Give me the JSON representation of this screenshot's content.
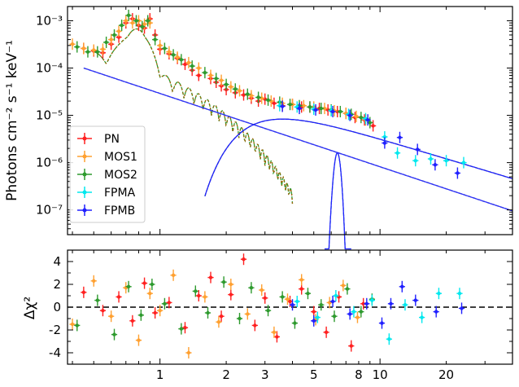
{
  "chart_data": [
    {
      "panel": "spectrum",
      "type": "scatter",
      "xscale": "log",
      "yscale": "log",
      "xlim": [
        0.38,
        40
      ],
      "ylim": [
        3e-08,
        0.002
      ],
      "ylabel": "Photons cm⁻² s⁻¹ keV⁻¹",
      "y_tick_labels": [
        {
          "value": 0.001,
          "label": "10⁻³"
        },
        {
          "value": 0.0001,
          "label": "10⁻⁴"
        },
        {
          "value": 1e-05,
          "label": "10⁻⁵"
        },
        {
          "value": 1e-06,
          "label": "10⁻⁶"
        },
        {
          "value": 1e-07,
          "label": "10⁻⁷"
        }
      ],
      "legend_position": "lower-left",
      "legend": [
        "PN",
        "MOS1",
        "MOS2",
        "FPMA",
        "FPMB"
      ],
      "series": [
        {
          "name": "PN",
          "color": "#ff2020",
          "x": [
            0.45,
            0.5,
            0.55,
            0.6,
            0.65,
            0.7,
            0.75,
            0.8,
            0.85,
            0.9,
            0.95,
            1.0,
            1.1,
            1.2,
            1.3,
            1.4,
            1.5,
            1.7,
            1.8,
            1.9,
            2.0,
            2.2,
            2.4,
            2.6,
            2.8,
            3.0,
            3.3,
            3.6,
            4.0,
            4.4,
            4.8,
            5.3,
            5.8,
            6.4,
            7.0,
            7.7,
            8.5,
            9.3
          ],
          "y": [
            0.00026,
            0.00023,
            0.00021,
            0.00032,
            0.00045,
            0.0009,
            0.0011,
            0.0008,
            0.0007,
            0.0011,
            0.0005,
            0.00025,
            0.0002,
            0.00016,
            0.00012,
            9e-05,
            7e-05,
            6e-05,
            5e-05,
            4.2e-05,
            3.5e-05,
            3e-05,
            2.7e-05,
            2.3e-05,
            2e-05,
            2.2e-05,
            1.8e-05,
            1.6e-05,
            1.7e-05,
            1.5e-05,
            1.5e-05,
            1.4e-05,
            1.3e-05,
            1.2e-05,
            1.1e-05,
            9e-06,
            8e-06,
            6e-06
          ]
        },
        {
          "name": "MOS1",
          "color": "#ffa030",
          "x": [
            0.4,
            0.45,
            0.5,
            0.55,
            0.6,
            0.65,
            0.7,
            0.75,
            0.8,
            0.85,
            0.9,
            1.0,
            1.1,
            1.2,
            1.35,
            1.5,
            1.7,
            1.9,
            2.1,
            2.3,
            2.6,
            2.9,
            3.2,
            3.6,
            4.0,
            4.5,
            5.0,
            5.6,
            6.2,
            7.0,
            7.8,
            8.6
          ],
          "y": [
            0.00032,
            0.00026,
            0.00024,
            0.00025,
            0.0004,
            0.0006,
            0.001,
            0.0009,
            0.001,
            0.00085,
            0.0009,
            0.0003,
            0.00022,
            0.00017,
            0.00013,
            0.0001,
            7e-05,
            5.5e-05,
            4e-05,
            3.3e-05,
            2.6e-05,
            2.3e-05,
            2e-05,
            1.8e-05,
            1.7e-05,
            1.6e-05,
            1.5e-05,
            1.4e-05,
            1.25e-05,
            1.1e-05,
            9.5e-06,
            8e-06
          ]
        },
        {
          "name": "MOS2",
          "color": "#2e9a2e",
          "x": [
            0.42,
            0.47,
            0.52,
            0.57,
            0.62,
            0.67,
            0.72,
            0.78,
            0.83,
            0.88,
            0.95,
            1.05,
            1.15,
            1.25,
            1.4,
            1.6,
            1.8,
            2.0,
            2.2,
            2.5,
            2.8,
            3.1,
            3.5,
            3.9,
            4.3,
            4.8,
            5.4,
            6.0,
            6.6,
            7.4,
            8.2,
            9.0
          ],
          "y": [
            0.00028,
            0.00022,
            0.00022,
            0.00035,
            0.0005,
            0.0008,
            0.0013,
            0.001,
            0.00075,
            0.001,
            0.0004,
            0.00026,
            0.00019,
            0.00015,
            0.00011,
            8e-05,
            6e-05,
            4.5e-05,
            3.6e-05,
            2.8e-05,
            2.4e-05,
            2.1e-05,
            1.9e-05,
            1.7e-05,
            1.6e-05,
            1.5e-05,
            1.4e-05,
            1.3e-05,
            1.2e-05,
            1.05e-05,
            9e-06,
            7e-06
          ]
        },
        {
          "name": "FPMA",
          "color": "#00e8ee",
          "x": [
            3.5,
            4.2,
            5.0,
            6.0,
            7.2,
            8.6,
            10.5,
            12.0,
            14.5,
            17.0,
            20.0,
            24.0
          ],
          "y": [
            1.6e-05,
            1.5e-05,
            1.35e-05,
            1.25e-05,
            1.05e-05,
            8.5e-06,
            3.5e-06,
            1.6e-06,
            1.1e-06,
            1.2e-06,
            1.1e-06,
            1e-06
          ]
        },
        {
          "name": "FPMB",
          "color": "#2020ff",
          "x": [
            3.6,
            4.3,
            5.1,
            6.1,
            7.3,
            8.8,
            10.5,
            12.3,
            14.8,
            17.8,
            22.5
          ],
          "y": [
            1.55e-05,
            1.4e-05,
            1.3e-05,
            1.2e-05,
            1e-05,
            8e-06,
            2.6e-06,
            3.4e-06,
            1.9e-06,
            9e-07,
            6e-07
          ]
        }
      ]
    },
    {
      "panel": "residuals",
      "type": "scatter",
      "xscale": "log",
      "xlim": [
        0.38,
        40
      ],
      "ylim": [
        -5,
        5
      ],
      "ylabel": "Δχ²",
      "y_ticks": [
        -4,
        -2,
        0,
        2,
        4
      ],
      "x_ticks": [
        1,
        2,
        3,
        5,
        8,
        10,
        20
      ],
      "zero_line": "dashed",
      "series": [
        {
          "name": "PN",
          "color": "#ff2020",
          "x": [
            0.45,
            0.55,
            0.65,
            0.75,
            0.85,
            0.95,
            1.1,
            1.3,
            1.5,
            1.7,
            1.9,
            2.1,
            2.4,
            2.7,
            3.0,
            3.4,
            3.9,
            4.4,
            5.0,
            5.7,
            6.5,
            7.4,
            8.4
          ],
          "y": [
            1.3,
            -0.3,
            0.9,
            -1.2,
            2.1,
            -0.5,
            0.4,
            -1.8,
            1.0,
            2.6,
            -0.8,
            1.1,
            4.2,
            -1.6,
            0.8,
            -2.6,
            0.5,
            1.6,
            -0.4,
            -2.2,
            0.9,
            -3.4,
            0.3
          ]
        },
        {
          "name": "MOS1",
          "color": "#ffa030",
          "x": [
            0.4,
            0.5,
            0.6,
            0.7,
            0.8,
            0.9,
            1.0,
            1.15,
            1.35,
            1.6,
            1.85,
            2.1,
            2.5,
            2.9,
            3.3,
            3.8,
            4.4,
            5.1,
            5.9,
            6.8,
            7.9
          ],
          "y": [
            -1.5,
            2.3,
            -0.8,
            1.7,
            -2.9,
            1.2,
            -0.3,
            2.8,
            -4.0,
            0.9,
            -1.3,
            2.0,
            -0.6,
            1.5,
            -2.2,
            0.7,
            2.4,
            -1.1,
            0.4,
            1.9,
            -0.9
          ]
        },
        {
          "name": "MOS2",
          "color": "#2e9a2e",
          "x": [
            0.42,
            0.52,
            0.62,
            0.72,
            0.82,
            0.92,
            1.05,
            1.25,
            1.45,
            1.65,
            1.95,
            2.3,
            2.6,
            3.1,
            3.6,
            4.1,
            4.7,
            5.4,
            6.2,
            7.1,
            8.2,
            9.2
          ],
          "y": [
            -1.6,
            0.6,
            -2.4,
            1.8,
            -0.7,
            2.0,
            0.3,
            -1.9,
            1.4,
            -0.5,
            2.2,
            -1.0,
            1.7,
            -0.3,
            0.9,
            -1.4,
            1.2,
            0.2,
            -0.8,
            1.6,
            -0.4,
            0.7
          ]
        },
        {
          "name": "FPMA",
          "color": "#00e8ee",
          "x": [
            4.2,
            5.2,
            6.3,
            7.6,
            9.2,
            11.0,
            13.0,
            15.5,
            18.5,
            23.0
          ],
          "y": [
            0.5,
            -0.9,
            1.0,
            -0.4,
            0.6,
            -2.8,
            0.2,
            -0.9,
            1.2,
            1.2
          ]
        },
        {
          "name": "FPMB",
          "color": "#2020ff",
          "x": [
            4.0,
            5.0,
            6.1,
            7.3,
            8.7,
            10.2,
            11.2,
            12.6,
            14.5,
            18.0,
            23.5
          ],
          "y": [
            0.2,
            -1.2,
            0.5,
            -0.6,
            0.3,
            -1.4,
            0.3,
            1.8,
            0.6,
            -0.4,
            -0.1
          ]
        }
      ]
    }
  ]
}
